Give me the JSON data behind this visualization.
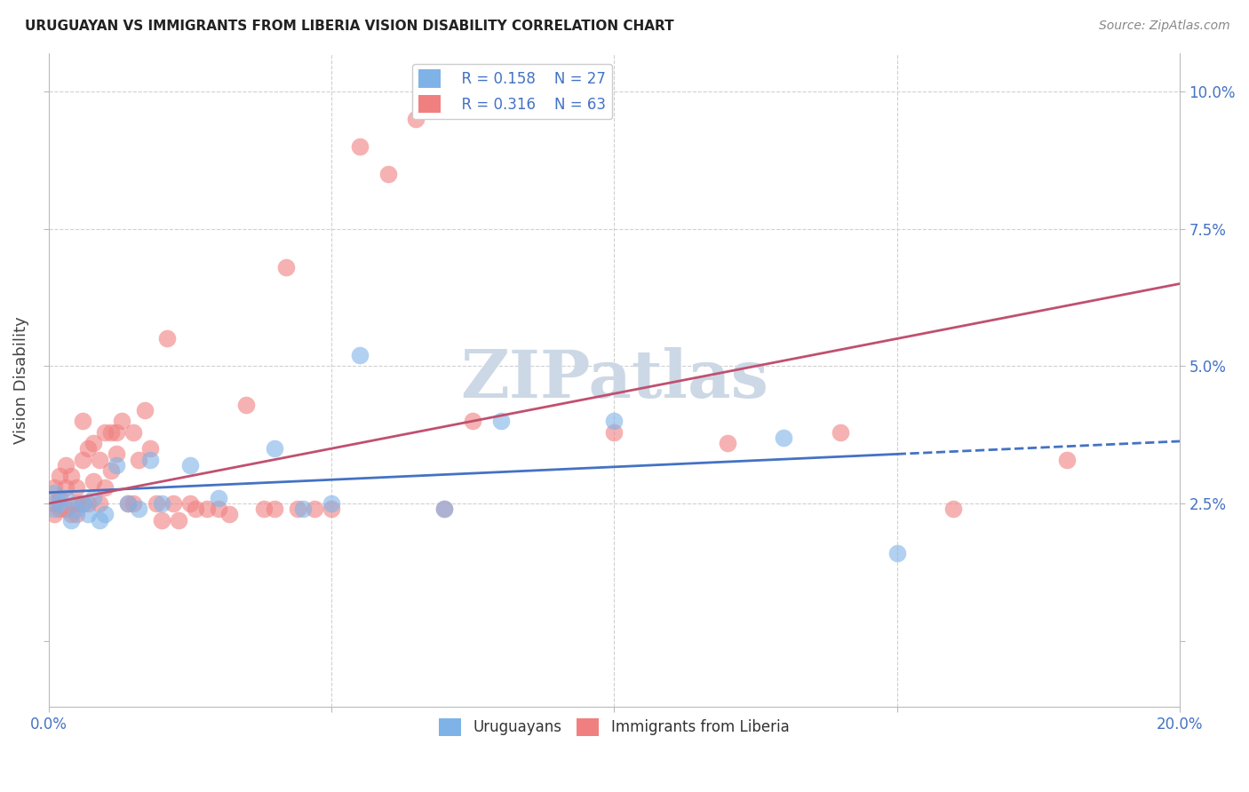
{
  "title": "URUGUAYAN VS IMMIGRANTS FROM LIBERIA VISION DISABILITY CORRELATION CHART",
  "source": "Source: ZipAtlas.com",
  "ylabel": "Vision Disability",
  "xlim": [
    0.0,
    0.2
  ],
  "ylim": [
    -0.012,
    0.107
  ],
  "background_color": "#ffffff",
  "grid_color": "#d0d0d0",
  "uruguayan_color": "#7fb3e8",
  "liberia_color": "#f08080",
  "uruguayan_r": 0.158,
  "uruguayan_n": 27,
  "liberia_r": 0.316,
  "liberia_n": 63,
  "trend_color_blue": "#4472c4",
  "trend_color_pink": "#c05070",
  "watermark": "ZIPatlas",
  "watermark_color": "#ccd8e5",
  "uruguayan_x": [
    0.001,
    0.001,
    0.002,
    0.003,
    0.004,
    0.005,
    0.006,
    0.007,
    0.008,
    0.009,
    0.01,
    0.012,
    0.014,
    0.016,
    0.018,
    0.02,
    0.025,
    0.03,
    0.04,
    0.045,
    0.05,
    0.055,
    0.07,
    0.08,
    0.1,
    0.13,
    0.15
  ],
  "uruguayan_y": [
    0.027,
    0.024,
    0.025,
    0.026,
    0.022,
    0.024,
    0.025,
    0.023,
    0.026,
    0.022,
    0.023,
    0.032,
    0.025,
    0.024,
    0.033,
    0.025,
    0.032,
    0.026,
    0.035,
    0.024,
    0.025,
    0.052,
    0.024,
    0.04,
    0.04,
    0.037,
    0.016
  ],
  "liberia_x": [
    0.001,
    0.001,
    0.001,
    0.002,
    0.002,
    0.002,
    0.003,
    0.003,
    0.003,
    0.004,
    0.004,
    0.005,
    0.005,
    0.005,
    0.006,
    0.006,
    0.006,
    0.007,
    0.007,
    0.008,
    0.008,
    0.009,
    0.009,
    0.01,
    0.01,
    0.011,
    0.011,
    0.012,
    0.012,
    0.013,
    0.014,
    0.015,
    0.015,
    0.016,
    0.017,
    0.018,
    0.019,
    0.02,
    0.021,
    0.022,
    0.023,
    0.025,
    0.026,
    0.028,
    0.03,
    0.032,
    0.035,
    0.038,
    0.04,
    0.042,
    0.044,
    0.047,
    0.05,
    0.055,
    0.06,
    0.065,
    0.07,
    0.075,
    0.1,
    0.12,
    0.14,
    0.16,
    0.18
  ],
  "liberia_y": [
    0.028,
    0.025,
    0.023,
    0.03,
    0.026,
    0.024,
    0.028,
    0.032,
    0.024,
    0.03,
    0.023,
    0.028,
    0.025,
    0.023,
    0.033,
    0.025,
    0.04,
    0.035,
    0.025,
    0.029,
    0.036,
    0.025,
    0.033,
    0.038,
    0.028,
    0.031,
    0.038,
    0.034,
    0.038,
    0.04,
    0.025,
    0.038,
    0.025,
    0.033,
    0.042,
    0.035,
    0.025,
    0.022,
    0.055,
    0.025,
    0.022,
    0.025,
    0.024,
    0.024,
    0.024,
    0.023,
    0.043,
    0.024,
    0.024,
    0.068,
    0.024,
    0.024,
    0.024,
    0.09,
    0.085,
    0.095,
    0.024,
    0.04,
    0.038,
    0.036,
    0.038,
    0.024,
    0.033
  ]
}
